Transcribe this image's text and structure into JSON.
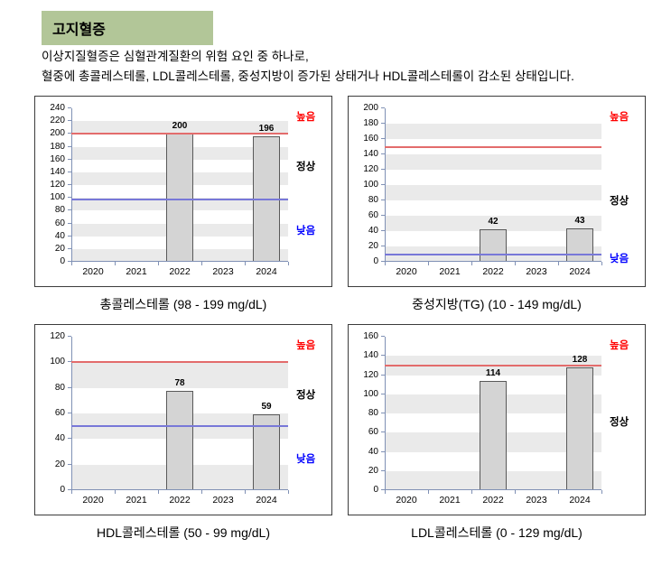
{
  "page": {
    "title": "고지혈증",
    "description": [
      "이상지질혈증은 심혈관계질환의 위험 요인 중 하나로,",
      "혈중에 총콜레스테롤, LDL콜레스테롤, 중성지방이 증가된 상태거나 HDL콜레스테롤이 감소된 상태입니다."
    ]
  },
  "colors": {
    "header_bg": "#b2c698",
    "high_line": "#e36c6c",
    "low_line": "#7878d8",
    "high_text": "#ff0000",
    "normal_text": "#000000",
    "low_text": "#0000ff",
    "bar_fill": "#d4d4d4",
    "bar_border": "#595959"
  },
  "chart_data": [
    {
      "type": "bar",
      "title": "총콜레스테롤 (98 - 199 mg/dL)",
      "categories": [
        "2020",
        "2021",
        "2022",
        "2023",
        "2024"
      ],
      "values": [
        null,
        null,
        200,
        null,
        196
      ],
      "ylim": [
        0,
        240
      ],
      "ystep": 20,
      "threshold_high": 200,
      "threshold_low": 98,
      "labels": {
        "high": "높음",
        "normal": "정상",
        "low": "낮음"
      },
      "legend_position": "right",
      "grid": true
    },
    {
      "type": "bar",
      "title": "중성지방(TG) (10 - 149 mg/dL)",
      "categories": [
        "2020",
        "2021",
        "2022",
        "2023",
        "2024"
      ],
      "values": [
        null,
        null,
        42,
        null,
        43
      ],
      "ylim": [
        0,
        200
      ],
      "ystep": 20,
      "threshold_high": 150,
      "threshold_low": 10,
      "labels": {
        "high": "높음",
        "normal": "정상",
        "low": "낮음"
      },
      "legend_position": "right",
      "grid": true
    },
    {
      "type": "bar",
      "title": "HDL콜레스테롤 (50 - 99 mg/dL)",
      "categories": [
        "2020",
        "2021",
        "2022",
        "2023",
        "2024"
      ],
      "values": [
        null,
        null,
        78,
        null,
        59
      ],
      "ylim": [
        0,
        120
      ],
      "ystep": 20,
      "threshold_high": 100,
      "threshold_low": 50,
      "labels": {
        "high": "높음",
        "normal": "정상",
        "low": "낮음"
      },
      "legend_position": "right",
      "grid": true
    },
    {
      "type": "bar",
      "title": "LDL콜레스테롤 (0 - 129 mg/dL)",
      "categories": [
        "2020",
        "2021",
        "2022",
        "2023",
        "2024"
      ],
      "values": [
        null,
        null,
        114,
        null,
        128
      ],
      "ylim": [
        0,
        160
      ],
      "ystep": 20,
      "threshold_high": 130,
      "threshold_low": null,
      "labels": {
        "high": "높음",
        "normal": "정상",
        "low": null
      },
      "legend_position": "right",
      "grid": true
    }
  ]
}
